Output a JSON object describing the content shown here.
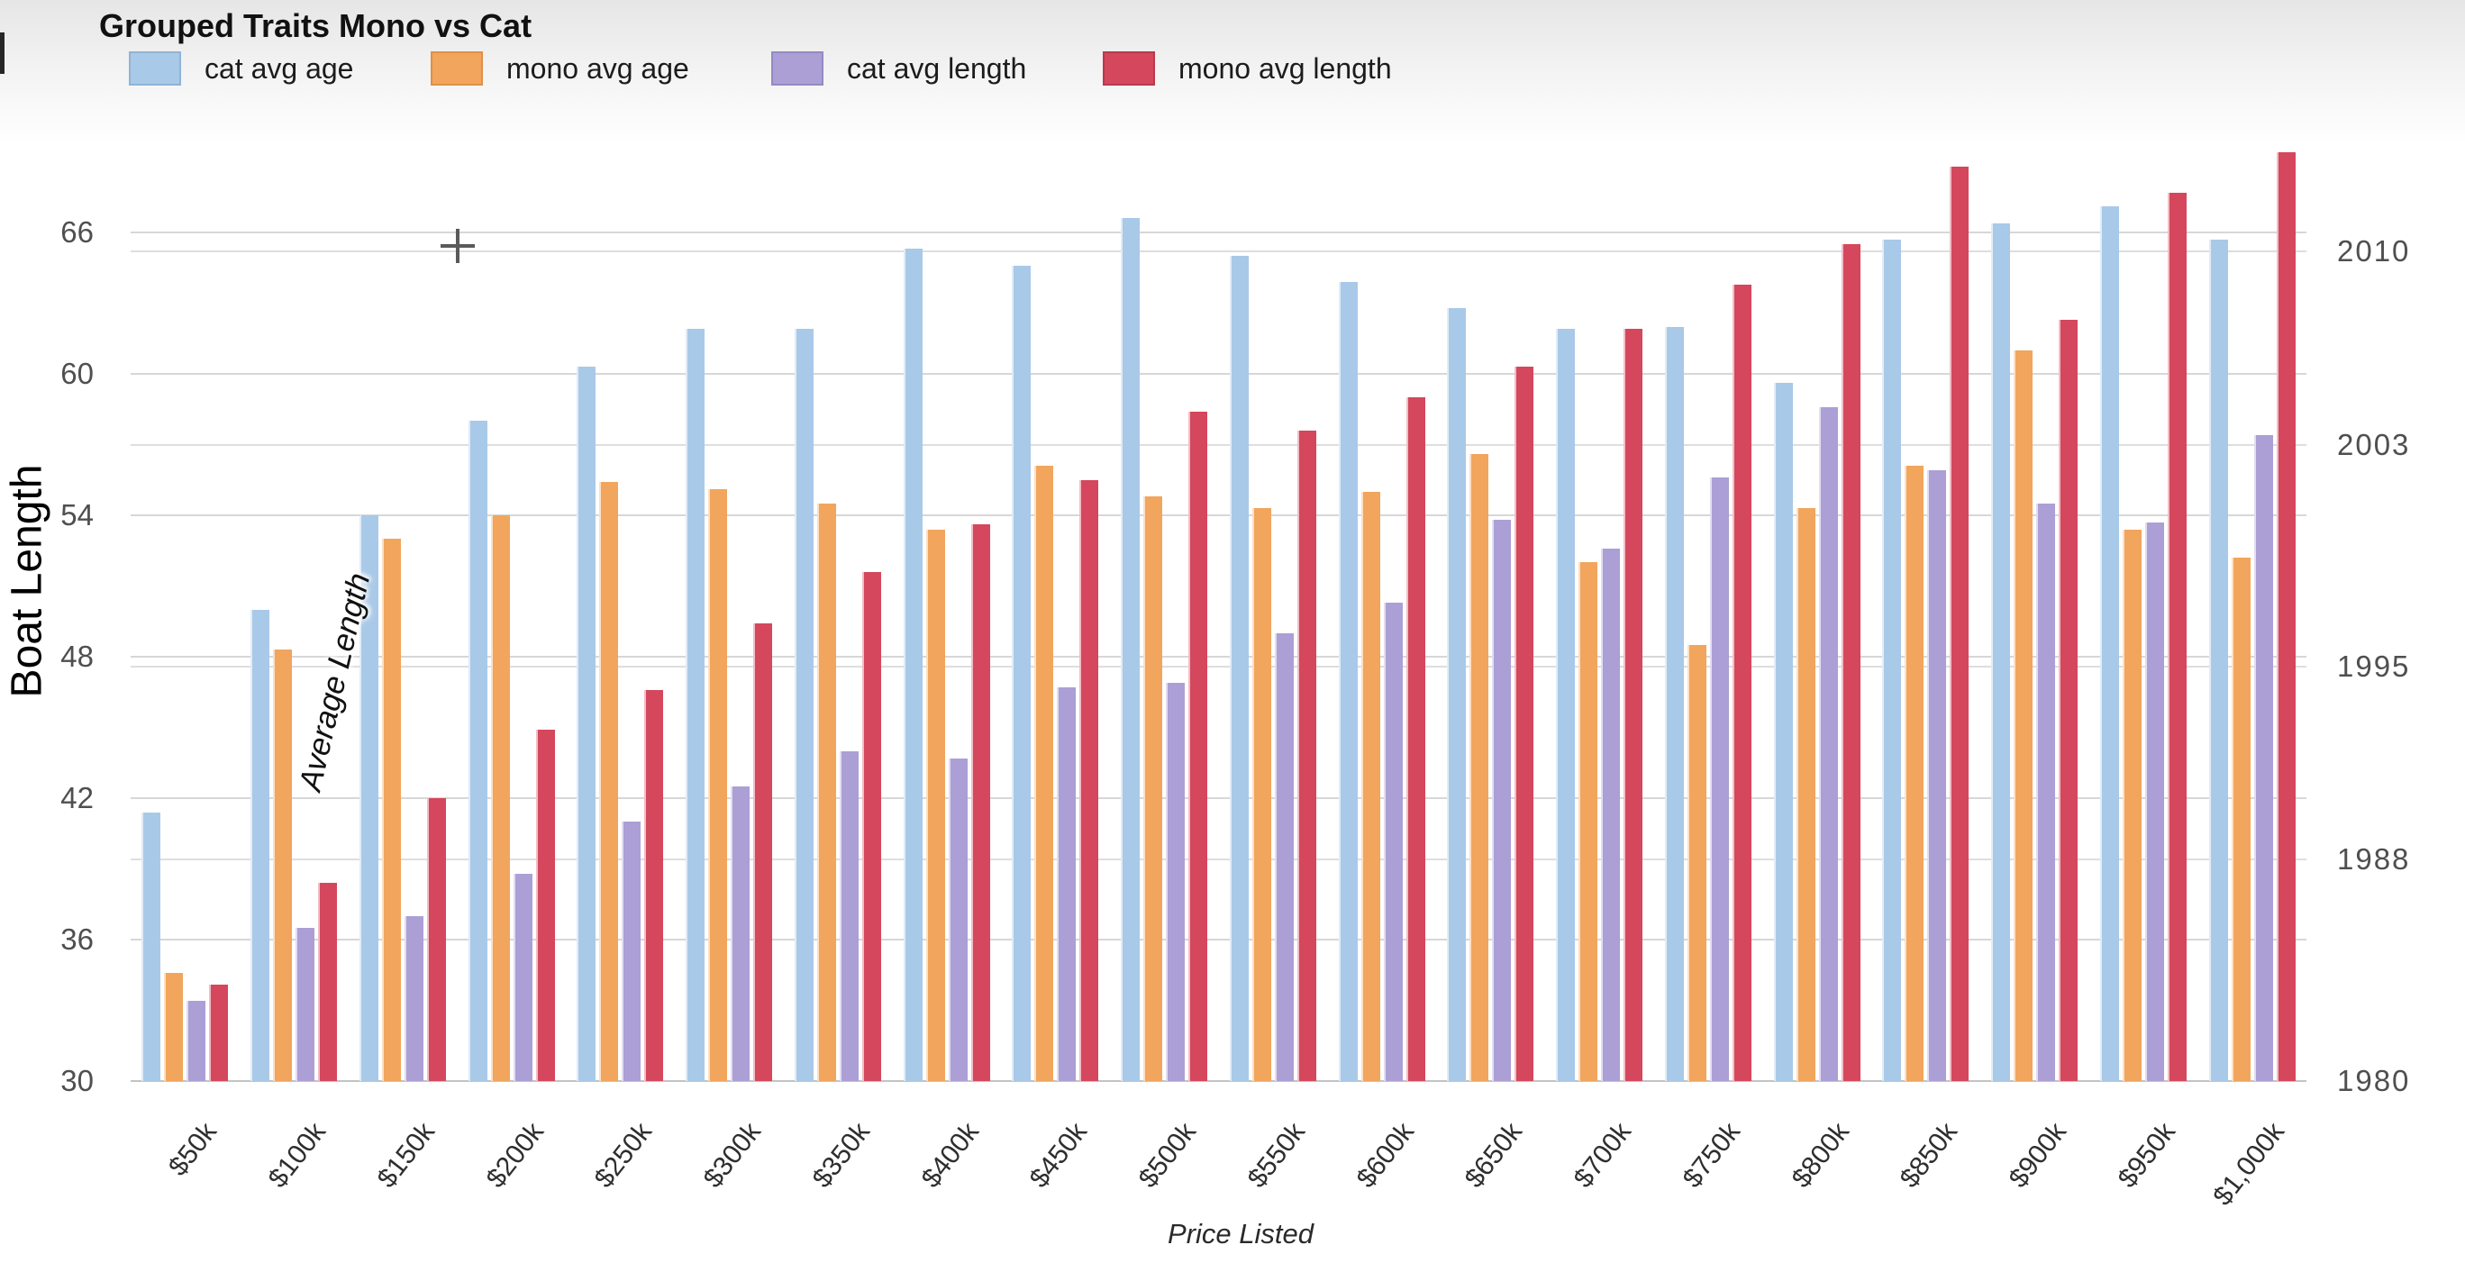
{
  "header": {
    "title": "Grouped Traits Mono vs Cat"
  },
  "legend": {
    "items": [
      {
        "label": "cat avg age",
        "color": "#a9c9e8",
        "border": "#8fb4d6"
      },
      {
        "label": "mono avg age",
        "color": "#f2a55c",
        "border": "#dd9148"
      },
      {
        "label": "cat avg length",
        "color": "#ab9fd6",
        "border": "#948ac2"
      },
      {
        "label": "mono avg length",
        "color": "#d4475c",
        "border": "#b83a4d"
      }
    ]
  },
  "chart_data": {
    "type": "bar",
    "title": "Grouped Traits Mono vs Cat",
    "xlabel": "Price Listed",
    "ylabel_left": "Boat Length",
    "annotation": "Average Length",
    "grid": true,
    "legend_position": "top",
    "categories": [
      "$50k",
      "$100k",
      "$150k",
      "$200k",
      "$250k",
      "$300k",
      "$350k",
      "$400k",
      "$450k",
      "$500k",
      "$550k",
      "$600k",
      "$650k",
      "$700k",
      "$750k",
      "$800k",
      "$850k",
      "$900k",
      "$950k",
      "$1,000k"
    ],
    "series": [
      {
        "name": "cat avg age",
        "color": "#a9c9e8",
        "values": [
          41.4,
          50.0,
          54.0,
          58.0,
          60.3,
          61.9,
          61.9,
          65.3,
          64.6,
          66.6,
          65.0,
          63.9,
          62.8,
          61.9,
          62.0,
          59.6,
          65.7,
          66.4,
          67.1,
          65.7
        ]
      },
      {
        "name": "mono avg age",
        "color": "#f2a55c",
        "values": [
          34.6,
          48.3,
          53.0,
          54.0,
          55.4,
          55.1,
          54.5,
          53.4,
          56.1,
          54.8,
          54.3,
          55.0,
          56.6,
          52.0,
          48.5,
          54.3,
          56.1,
          61.0,
          53.4,
          52.2
        ]
      },
      {
        "name": "cat avg length",
        "color": "#ab9fd6",
        "values": [
          33.4,
          36.5,
          37.0,
          38.8,
          41.0,
          42.5,
          44.0,
          43.7,
          46.7,
          46.9,
          49.0,
          50.3,
          53.8,
          52.6,
          55.6,
          58.6,
          55.9,
          54.5,
          53.7,
          57.4
        ]
      },
      {
        "name": "mono avg length",
        "color": "#d4475c",
        "values": [
          34.1,
          38.4,
          42.0,
          44.9,
          46.6,
          49.4,
          51.6,
          53.6,
          55.5,
          58.4,
          57.6,
          59.0,
          60.3,
          61.9,
          63.8,
          65.5,
          68.8,
          62.3,
          67.7,
          69.4
        ]
      }
    ],
    "y_axis_left": {
      "ticks": [
        30,
        36,
        42,
        48,
        54,
        60,
        66
      ],
      "min": 30,
      "max": 69.5
    },
    "y_axis_right": {
      "ticks": [
        1980,
        1988,
        1995,
        2003,
        2010
      ],
      "min": 1980
    },
    "crosshair_glyph": "+"
  }
}
